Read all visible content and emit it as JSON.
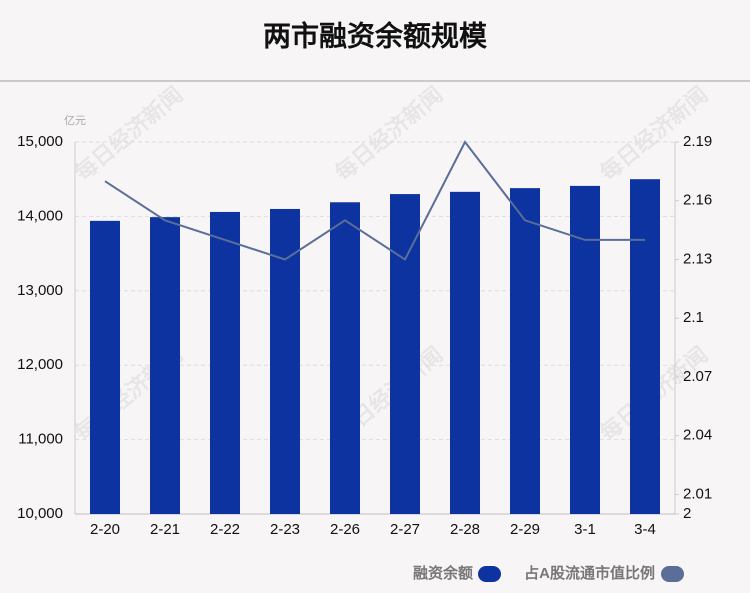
{
  "chart_data": {
    "type": "bar",
    "title": "两市融资余额规模",
    "y_label": "亿元",
    "watermark": "每日经济新闻",
    "categories": [
      "2-20",
      "2-21",
      "2-22",
      "2-23",
      "2-26",
      "2-27",
      "2-28",
      "2-29",
      "3-1",
      "3-4"
    ],
    "series": [
      {
        "name": "融资余额",
        "type": "bar",
        "color": "#0c33a0",
        "values": [
          13940,
          13990,
          14060,
          14100,
          14190,
          14300,
          14330,
          14380,
          14410,
          14500
        ]
      },
      {
        "name": "占A股流通市值比例",
        "type": "line",
        "axis": "y2",
        "color": "#5a6e98",
        "values": [
          2.17,
          2.15,
          2.14,
          2.13,
          2.15,
          2.13,
          2.19,
          2.15,
          2.14,
          2.14
        ]
      }
    ],
    "ylim": [
      10000,
      15000
    ],
    "yticks": [
      {
        "value": 10000,
        "label": "10,000"
      },
      {
        "value": 11000,
        "label": "11,000"
      },
      {
        "value": 12000,
        "label": "12,000"
      },
      {
        "value": 13000,
        "label": "13,000"
      },
      {
        "value": 14000,
        "label": "14,000"
      },
      {
        "value": 15000,
        "label": "15,000"
      }
    ],
    "y2lim": [
      2,
      2.19
    ],
    "y2ticks": [
      2,
      2.01,
      2.04,
      2.07,
      2.1,
      2.13,
      2.16,
      2.19
    ],
    "grid": true
  }
}
